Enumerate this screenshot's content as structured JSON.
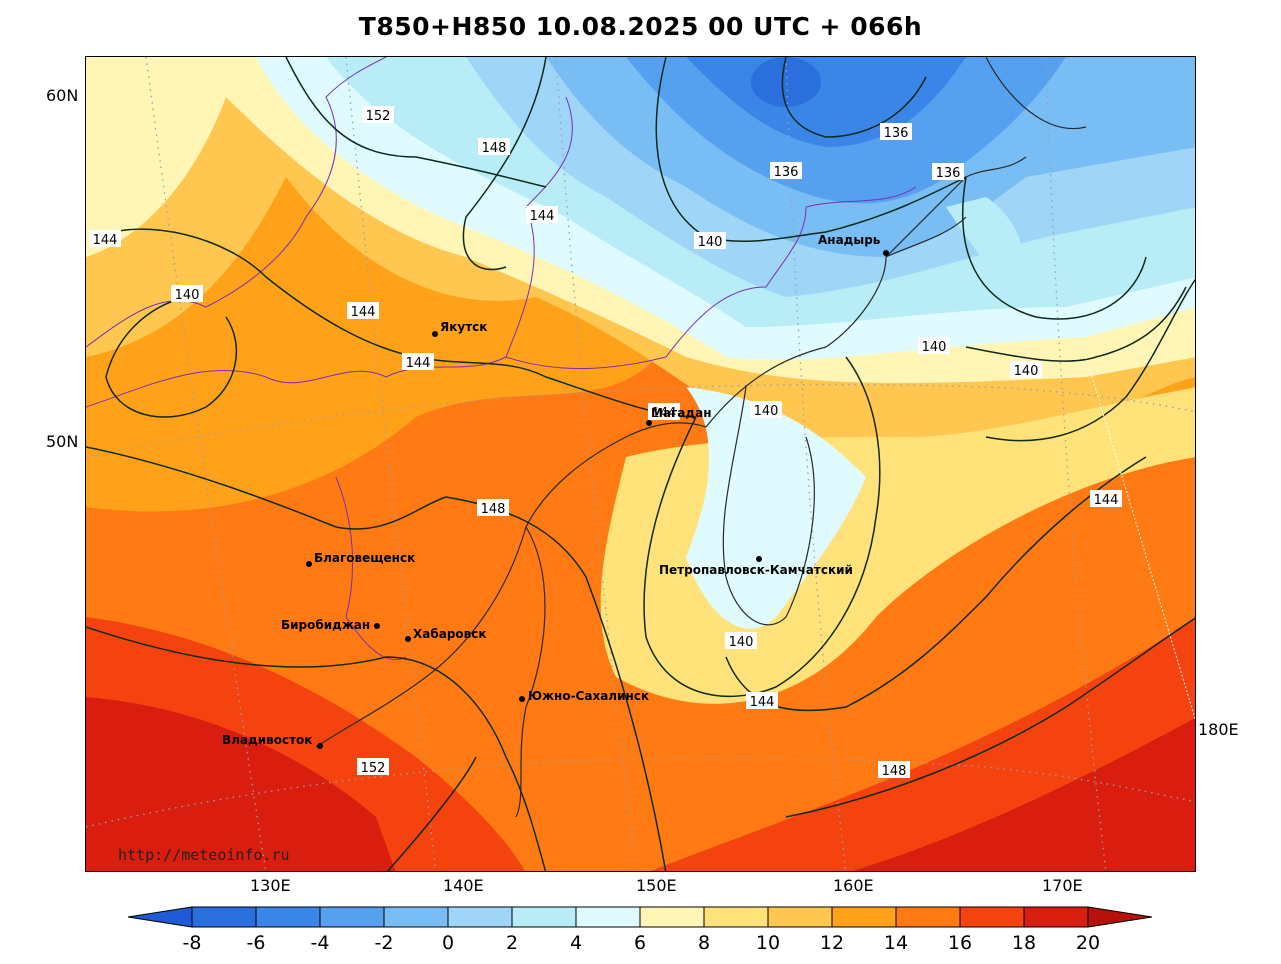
{
  "title": "T850+H850 10.08.2025 00 UTC + 066h",
  "watermark": "http://meteoinfo.ru",
  "lat_labels": [
    "60N",
    "50N"
  ],
  "lon_labels": [
    "130E",
    "140E",
    "150E",
    "160E",
    "170E",
    "180E"
  ],
  "cities": [
    {
      "id": "yakutsk",
      "name": "Якутск"
    },
    {
      "id": "magadan",
      "name": "Магадан"
    },
    {
      "id": "anadyr",
      "name": "Анадырь"
    },
    {
      "id": "blagoveshchensk",
      "name": "Благовещенск"
    },
    {
      "id": "birobidzhan",
      "name": "Биробиджан"
    },
    {
      "id": "khabarovsk",
      "name": "Хабаровск"
    },
    {
      "id": "yuzhno",
      "name": "Южно-Сахалинск"
    },
    {
      "id": "petropavlovsk",
      "name": "Петропавловск-Камчатский"
    },
    {
      "id": "vladivostok",
      "name": "Владивосток"
    }
  ],
  "contour_labels": [
    "152",
    "148",
    "144",
    "144",
    "140",
    "144",
    "144",
    "136",
    "136",
    "136",
    "140",
    "140",
    "140",
    "140",
    "144",
    "148",
    "144",
    "140",
    "144",
    "148",
    "152",
    "144"
  ],
  "legend": {
    "ticks": [
      "-8",
      "-6",
      "-4",
      "-2",
      "0",
      "2",
      "4",
      "6",
      "8",
      "10",
      "12",
      "14",
      "16",
      "18",
      "20"
    ],
    "colors": [
      "#2b6fdc",
      "#3a86e8",
      "#55a0ef",
      "#79bdf5",
      "#9fd6f7",
      "#b8ecf7",
      "#dffbff",
      "#fff5b5",
      "#ffe27a",
      "#ffc650",
      "#ffa21a",
      "#ff7a12",
      "#f54310",
      "#d91e10"
    ],
    "low_color": "#1f5bd6",
    "high_color": "#b8100a"
  }
}
